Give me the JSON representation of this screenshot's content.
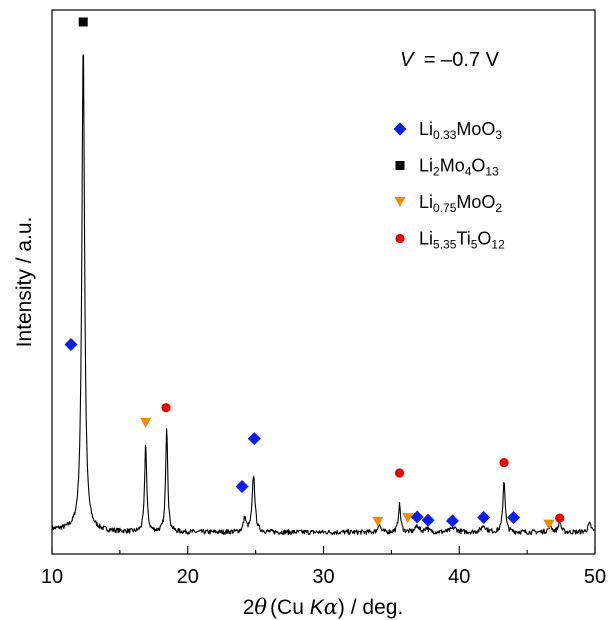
{
  "chart_data": {
    "type": "line",
    "annotation": {
      "label": "V",
      "value": "= –0.7 V"
    },
    "xlabel": {
      "prefix": "2",
      "theta": "θ",
      "paren": "(Cu ",
      "K": "K",
      "alpha": "α",
      "suffix": ") / deg."
    },
    "ylabel": "Intensity / a.u.",
    "xlim": [
      10,
      50
    ],
    "x_ticks": [
      10,
      20,
      30,
      40,
      50
    ],
    "y_ticks_shown": false,
    "ylim": [
      0,
      100
    ],
    "baseline": 4,
    "peaks": [
      {
        "x": 12.3,
        "h": 90,
        "w": 0.12
      },
      {
        "x": 16.9,
        "h": 16.5,
        "w": 0.09
      },
      {
        "x": 18.45,
        "h": 19.5,
        "w": 0.09
      },
      {
        "x": 24.2,
        "h": 2.5,
        "w": 0.12
      },
      {
        "x": 24.85,
        "h": 10.5,
        "w": 0.12
      },
      {
        "x": 34.1,
        "h": 1.6,
        "w": 0.1
      },
      {
        "x": 35.6,
        "h": 5,
        "w": 0.1
      },
      {
        "x": 36.9,
        "h": 1.2,
        "w": 0.15
      },
      {
        "x": 37.6,
        "h": 0.8,
        "w": 0.15
      },
      {
        "x": 39.6,
        "h": 0.8,
        "w": 0.25
      },
      {
        "x": 41.8,
        "h": 1.2,
        "w": 0.2
      },
      {
        "x": 43.3,
        "h": 9.5,
        "w": 0.1
      },
      {
        "x": 46.7,
        "h": 1.2,
        "w": 0.15
      },
      {
        "x": 47.4,
        "h": 2.2,
        "w": 0.1
      },
      {
        "x": 49.6,
        "h": 1.5,
        "w": 0.15
      }
    ],
    "series": [
      {
        "name": "Li0.33MoO3",
        "name_parts": [
          [
            "Li",
            ""
          ],
          [
            "0.33",
            "sub"
          ],
          [
            "MoO",
            ""
          ],
          [
            "3",
            "sub"
          ]
        ],
        "marker": "diamond",
        "color": "#0a1ee6",
        "points": [
          [
            11.4,
            38.5
          ],
          [
            24.0,
            12.4
          ],
          [
            24.9,
            21.2
          ],
          [
            36.9,
            6.8
          ],
          [
            37.7,
            6.2
          ],
          [
            39.5,
            6.1
          ],
          [
            41.8,
            6.7
          ],
          [
            44.0,
            6.7
          ]
        ]
      },
      {
        "name": "Li2Mo4O13",
        "name_parts": [
          [
            "Li",
            ""
          ],
          [
            "2",
            "sub"
          ],
          [
            "Mo",
            ""
          ],
          [
            "4",
            "sub"
          ],
          [
            "O",
            ""
          ],
          [
            "13",
            "sub"
          ]
        ],
        "marker": "square",
        "color": "#000000",
        "points": [
          [
            12.3,
            97.8
          ]
        ]
      },
      {
        "name": "Li0.75MoO2",
        "name_parts": [
          [
            "Li",
            ""
          ],
          [
            "0.75",
            "sub"
          ],
          [
            "MoO",
            ""
          ],
          [
            "2",
            "sub"
          ]
        ],
        "marker": "triangle-down",
        "color": "#f08c00",
        "points": [
          [
            16.9,
            24.1
          ],
          [
            34.0,
            5.9
          ],
          [
            36.2,
            6.6
          ],
          [
            46.6,
            5.4
          ]
        ]
      },
      {
        "name": "Li5.35Ti5O12",
        "name_parts": [
          [
            "Li",
            ""
          ],
          [
            "5.35",
            "sub"
          ],
          [
            "Ti",
            ""
          ],
          [
            "5",
            "sub"
          ],
          [
            "O",
            ""
          ],
          [
            "12",
            "sub"
          ]
        ],
        "marker": "circle",
        "color": "#e60000",
        "points": [
          [
            18.4,
            26.9
          ],
          [
            35.6,
            14.9
          ],
          [
            43.3,
            16.8
          ],
          [
            47.4,
            6.6
          ]
        ]
      }
    ],
    "legend_position": "top-right"
  }
}
